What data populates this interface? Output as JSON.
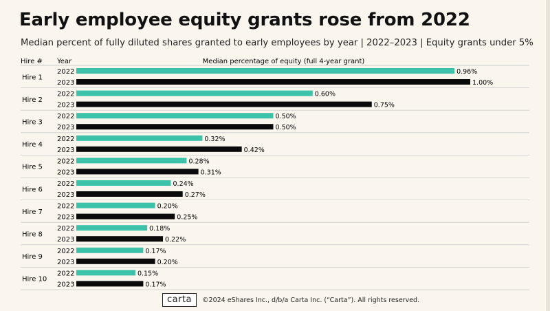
{
  "title": "Early employee equity grants rose from 2022",
  "subtitle": "Median percent of fully diluted shares granted to early employees by year  |  2022–2023 | Equity grants under 5%",
  "footer": {
    "logo": "carta",
    "copyright": "©2024 eShares Inc., d/b/a Carta Inc. (“Carta”). All rights reserved."
  },
  "colors": {
    "y2022": "#3cc2a8",
    "y2023": "#0a0a0a",
    "background": "#faf6ee"
  },
  "chart_data": {
    "type": "bar",
    "orientation": "horizontal",
    "header_hire": "Hire #",
    "header_year": "Year",
    "header_value": "Median percentage of equity (full 4-year grant)",
    "categories": [
      "Hire 1",
      "Hire 2",
      "Hire 3",
      "Hire 4",
      "Hire 5",
      "Hire 6",
      "Hire 7",
      "Hire 8",
      "Hire 9",
      "Hire 10"
    ],
    "series": [
      {
        "name": "2022",
        "values": [
          0.96,
          0.6,
          0.5,
          0.32,
          0.28,
          0.24,
          0.2,
          0.18,
          0.17,
          0.15
        ],
        "labels": [
          "0.96%",
          "0.60%",
          "0.50%",
          "0.32%",
          "0.28%",
          "0.24%",
          "0.20%",
          "0.18%",
          "0.17%",
          "0.15%"
        ]
      },
      {
        "name": "2023",
        "values": [
          1.0,
          0.75,
          0.5,
          0.42,
          0.31,
          0.27,
          0.25,
          0.22,
          0.2,
          0.17
        ],
        "labels": [
          "1.00%",
          "0.75%",
          "0.50%",
          "0.42%",
          "0.31%",
          "0.27%",
          "0.25%",
          "0.22%",
          "0.20%",
          "0.17%"
        ]
      }
    ],
    "xlim": [
      0,
      1.0
    ],
    "unit": "%"
  }
}
